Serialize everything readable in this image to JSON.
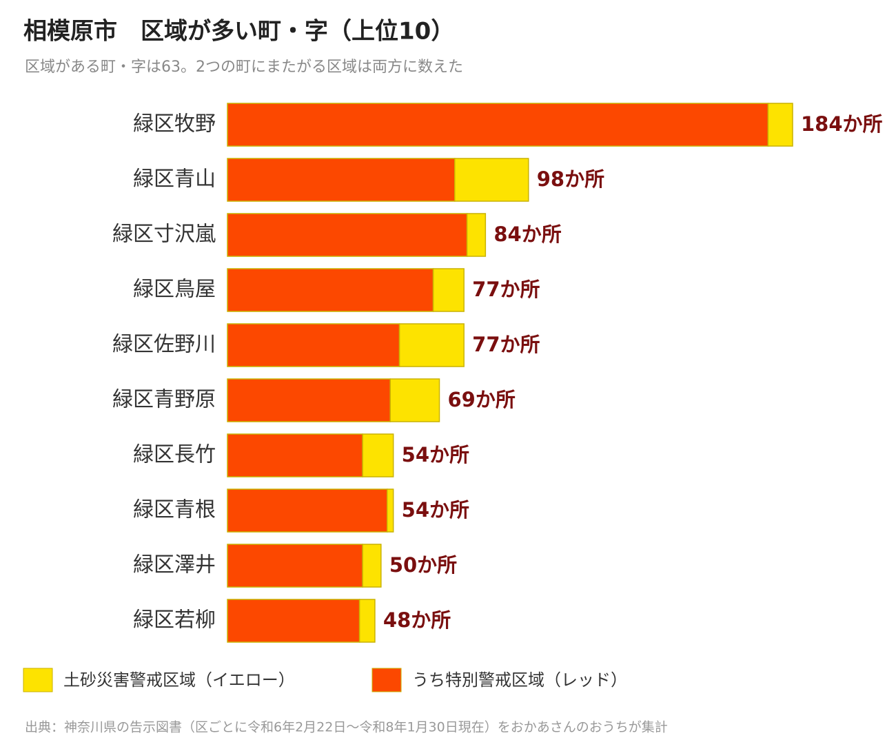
{
  "chart_data": {
    "type": "stacked_barh",
    "title": "相模原市　区域が多い町・字（上位10）",
    "subtitle": "区域がある町・字は63。2つの町にまたがる区域は両方に数えた",
    "categories": [
      "緑区牧野",
      "緑区青山",
      "緑区寸沢嵐",
      "緑区鳥屋",
      "緑区佐野川",
      "緑区青野原",
      "緑区長竹",
      "緑区青根",
      "緑区澤井",
      "緑区若柳"
    ],
    "series": [
      {
        "name": "うち特別警戒区域（レッド）",
        "color": "#fc4800",
        "values": [
          176,
          74,
          78,
          67,
          56,
          53,
          44,
          52,
          44,
          43
        ]
      },
      {
        "name": "土砂災害警戒区域（イエロー）",
        "color": "#fde300",
        "values": [
          8,
          24,
          6,
          10,
          21,
          16,
          10,
          2,
          6,
          5
        ]
      }
    ],
    "totals": [
      184,
      98,
      84,
      77,
      77,
      69,
      54,
      54,
      50,
      48
    ],
    "value_labels": [
      "184か所",
      "98か所",
      "84か所",
      "77か所",
      "77か所",
      "69か所",
      "54か所",
      "54か所",
      "50か所",
      "48か所"
    ],
    "xlim": [
      0,
      184
    ],
    "source": "出典：神奈川県の告示図書（区ごとに令和6年2月22日～令和8年1月30日現在）をおかあさんのおうちが集計"
  }
}
